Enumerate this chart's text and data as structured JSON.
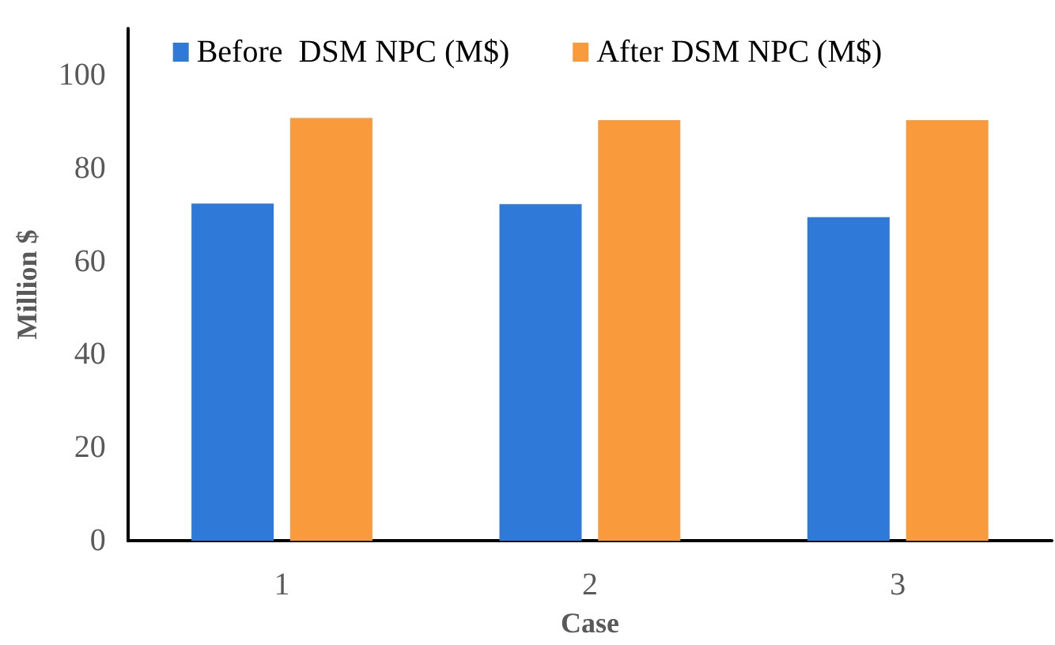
{
  "chart_data": {
    "type": "bar",
    "xlabel": "Case",
    "ylabel": "Million $",
    "categories": [
      "1",
      "2",
      "3"
    ],
    "series": [
      {
        "name": "Before  DSM NPC (M$)",
        "color": "#2f7ad8",
        "values": [
          72.4,
          72.3,
          69.5
        ]
      },
      {
        "name": "After DSM NPC (M$)",
        "color": "#f99b3c",
        "values": [
          90.8,
          90.3,
          90.3
        ]
      }
    ],
    "ylim": [
      0,
      110
    ],
    "yticks": [
      0,
      20,
      40,
      60,
      80,
      100
    ],
    "grid": false,
    "legend": "top"
  }
}
